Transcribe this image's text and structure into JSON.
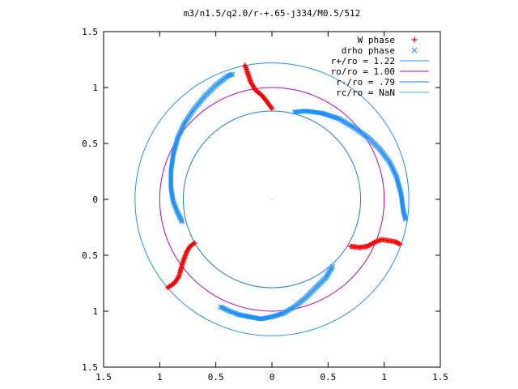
{
  "chart_data": {
    "type": "scatter",
    "title": "m3/n1.5/q2.0/r-+.65-j334/M0.5/512",
    "xlabel": "",
    "ylabel": "",
    "xlim": [
      -1.5,
      1.5
    ],
    "ylim": [
      -1.5,
      1.5
    ],
    "x_ticks": [
      "1.5",
      "1",
      "0.5",
      "0",
      "0.5",
      "1",
      "1.5"
    ],
    "y_ticks": [
      "1.5",
      "1",
      "0.5",
      "0",
      "0.5",
      "1",
      "1.5"
    ],
    "x_tick_values": [
      -1.5,
      -1,
      -0.5,
      0,
      0.5,
      1,
      1.5
    ],
    "y_tick_values": [
      1.5,
      1,
      0.5,
      0,
      -0.5,
      -1,
      -1.5
    ],
    "grid": false,
    "legend_position": "top-right",
    "legend": [
      {
        "label": "W phase",
        "color": "#ff0000",
        "marker": "plus"
      },
      {
        "label": "drho phase",
        "color": "#1e90ff",
        "marker": "cross"
      },
      {
        "label": "r+/ro = 1.22",
        "color": "#1e90ff",
        "marker": "line"
      },
      {
        "label": "ro/ro = 1.00",
        "color": "#bb00bb",
        "marker": "line"
      },
      {
        "label": "r-/ro = .79",
        "color": "#1e7fd6",
        "marker": "line"
      },
      {
        "label": "rc/ro = NaN",
        "color": "#2fbfbf",
        "marker": "line"
      }
    ],
    "circles": [
      {
        "r": 1.22,
        "color": "#1e90ff"
      },
      {
        "r": 1.0,
        "color": "#bb00bb"
      },
      {
        "r": 0.79,
        "color": "#1e7fd6"
      }
    ],
    "series": [
      {
        "name": "W phase",
        "color": "#ff0000",
        "marker": "plus",
        "arms": [
          [
            [
              -0.24,
              1.2
            ],
            [
              -0.22,
              1.14
            ],
            [
              -0.19,
              1.05
            ],
            [
              -0.15,
              0.98
            ],
            [
              -0.09,
              0.93
            ],
            [
              -0.05,
              0.88
            ],
            [
              -0.02,
              0.84
            ],
            [
              0.0,
              0.81
            ]
          ],
          [
            [
              0.7,
              -0.42
            ],
            [
              0.78,
              -0.43
            ],
            [
              0.85,
              -0.42
            ],
            [
              0.92,
              -0.38
            ],
            [
              0.98,
              -0.36
            ],
            [
              1.04,
              -0.37
            ],
            [
              1.1,
              -0.38
            ],
            [
              1.14,
              -0.4
            ]
          ],
          [
            [
              -0.93,
              -0.79
            ],
            [
              -0.87,
              -0.75
            ],
            [
              -0.83,
              -0.69
            ],
            [
              -0.81,
              -0.62
            ],
            [
              -0.79,
              -0.55
            ],
            [
              -0.76,
              -0.47
            ],
            [
              -0.73,
              -0.42
            ],
            [
              -0.69,
              -0.39
            ]
          ]
        ]
      },
      {
        "name": "drho phase",
        "color": "#1e90ff",
        "marker": "cross",
        "arms": [
          [
            [
              -0.46,
              -0.96
            ],
            [
              -0.4,
              -0.99
            ],
            [
              -0.3,
              -1.03
            ],
            [
              -0.2,
              -1.05
            ],
            [
              -0.1,
              -1.07
            ],
            [
              0.0,
              -1.05
            ],
            [
              0.1,
              -1.02
            ],
            [
              0.2,
              -0.96
            ],
            [
              0.3,
              -0.88
            ],
            [
              0.4,
              -0.78
            ],
            [
              0.48,
              -0.7
            ],
            [
              0.54,
              -0.6
            ]
          ],
          [
            [
              -0.8,
              -0.2
            ],
            [
              -0.84,
              -0.12
            ],
            [
              -0.88,
              -0.02
            ],
            [
              -0.9,
              0.1
            ],
            [
              -0.9,
              0.25
            ],
            [
              -0.88,
              0.4
            ],
            [
              -0.84,
              0.55
            ],
            [
              -0.78,
              0.68
            ],
            [
              -0.7,
              0.8
            ],
            [
              -0.6,
              0.92
            ],
            [
              -0.5,
              1.02
            ],
            [
              -0.4,
              1.1
            ],
            [
              -0.35,
              1.12
            ]
          ],
          [
            [
              0.2,
              0.78
            ],
            [
              0.3,
              0.79
            ],
            [
              0.45,
              0.77
            ],
            [
              0.6,
              0.72
            ],
            [
              0.75,
              0.63
            ],
            [
              0.86,
              0.55
            ],
            [
              0.96,
              0.45
            ],
            [
              1.05,
              0.33
            ],
            [
              1.11,
              0.2
            ],
            [
              1.15,
              0.05
            ],
            [
              1.17,
              -0.1
            ],
            [
              1.19,
              -0.18
            ]
          ]
        ]
      }
    ]
  }
}
